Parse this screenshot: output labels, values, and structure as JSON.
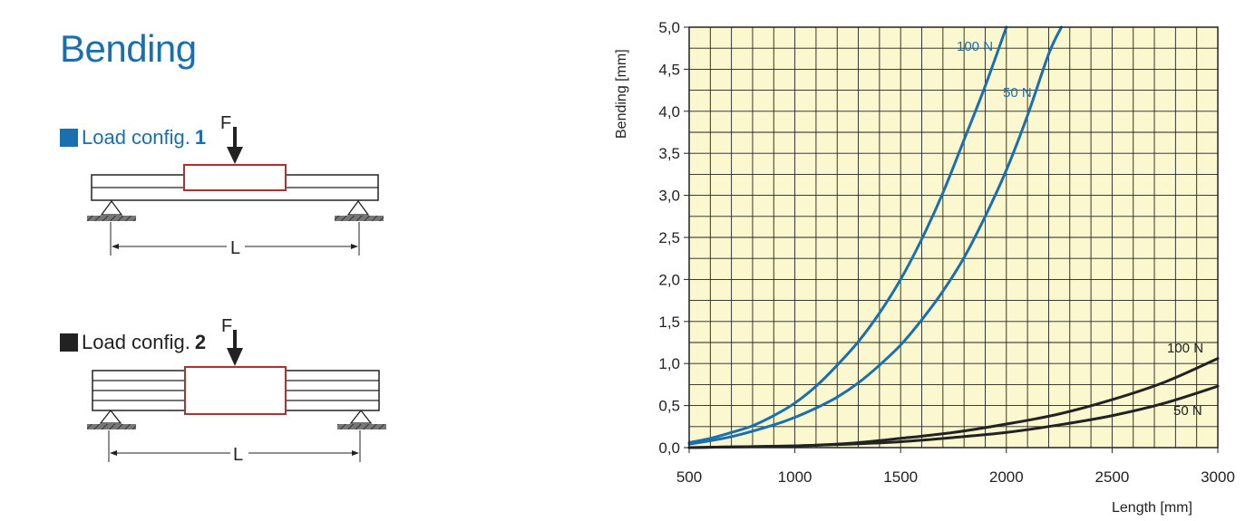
{
  "page": {
    "title": "Bending",
    "config1": {
      "label": "Load config.",
      "number": "1",
      "force_label": "F",
      "length_label": "L"
    },
    "config2": {
      "label": "Load config.",
      "number": "2",
      "force_label": "F",
      "length_label": "L"
    }
  },
  "colors": {
    "accent_blue": "#1a6fae",
    "dark": "#222222",
    "plot_bg": "#fbf7cf",
    "box_red": "#b03030"
  },
  "chart_data": {
    "type": "line",
    "xlabel": "Length [mm]",
    "ylabel": "Bending [mm]",
    "xlim": [
      500,
      3000
    ],
    "ylim": [
      0,
      5
    ],
    "x_ticks": [
      500,
      1000,
      1500,
      2000,
      2500,
      3000
    ],
    "y_ticks": [
      "0,0",
      "0,5",
      "1,0",
      "1,5",
      "2,0",
      "2,5",
      "3,0",
      "3,5",
      "4,0",
      "4,5",
      "5,0"
    ],
    "grid": true,
    "series": [
      {
        "name": "100 N",
        "config": "1",
        "color": "#1a6fae",
        "x": [
          500,
          600,
          700,
          800,
          900,
          1000,
          1100,
          1200,
          1300,
          1400,
          1500,
          1600,
          1700,
          1800,
          1900,
          2000
        ],
        "y": [
          0.06,
          0.11,
          0.18,
          0.26,
          0.38,
          0.53,
          0.73,
          0.98,
          1.26,
          1.6,
          2.0,
          2.48,
          3.03,
          3.66,
          4.3,
          5.0
        ]
      },
      {
        "name": "50 N",
        "config": "1",
        "color": "#1a6fae",
        "x": [
          500,
          700,
          900,
          1000,
          1100,
          1200,
          1300,
          1400,
          1500,
          1600,
          1700,
          1800,
          1900,
          2000,
          2100,
          2200,
          2260
        ],
        "y": [
          0.04,
          0.13,
          0.27,
          0.36,
          0.47,
          0.6,
          0.77,
          0.98,
          1.22,
          1.52,
          1.86,
          2.26,
          2.75,
          3.3,
          3.95,
          4.68,
          5.0
        ]
      },
      {
        "name": "100 N",
        "config": "2",
        "color": "#222222",
        "x": [
          500,
          750,
          1000,
          1250,
          1500,
          1750,
          2000,
          2250,
          2500,
          2750,
          3000
        ],
        "y": [
          0.0,
          0.01,
          0.02,
          0.05,
          0.11,
          0.18,
          0.28,
          0.4,
          0.57,
          0.78,
          1.06
        ]
      },
      {
        "name": "50 N",
        "config": "2",
        "color": "#222222",
        "x": [
          500,
          750,
          1000,
          1250,
          1500,
          1750,
          2000,
          2250,
          2500,
          2750,
          3000
        ],
        "y": [
          0.0,
          0.01,
          0.02,
          0.04,
          0.07,
          0.12,
          0.18,
          0.27,
          0.38,
          0.53,
          0.73
        ]
      }
    ]
  }
}
